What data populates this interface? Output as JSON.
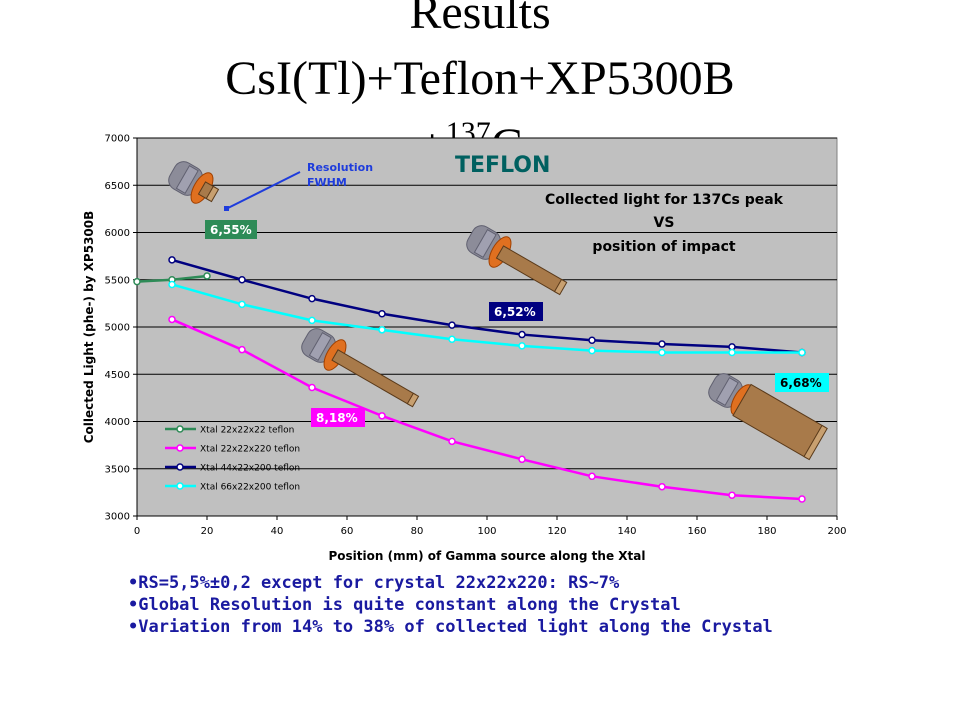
{
  "slide": {
    "title_line1": "Results",
    "title_line2": "CsI(Tl)+Teflon+XP5300B",
    "title_line3_prefix": "+",
    "title_line3_sup": "137",
    "title_line3_suffix": "Cs",
    "bullets": [
      "•RS=5,5%±0,2 except for crystal 22x22x220: RS~7%",
      "•Global Resolution is quite constant along the Crystal",
      "•Variation from 14% to 38% of collected light along the Crystal"
    ]
  },
  "colors": {
    "plot_bg": "#c0c0c0",
    "grid": "#000000",
    "teflon_title": "#006060",
    "series_green": "#2e8b57",
    "series_magenta": "#ff00ff",
    "series_navy": "#000080",
    "series_cyan": "#00ffff",
    "arrow": "#1e3cdc"
  },
  "chart_data": {
    "type": "line",
    "title": "",
    "xlabel": "Position (mm) of Gamma source along the Xtal",
    "ylabel": "Collected Light (phe-) by XP5300B",
    "xlim": [
      0,
      200
    ],
    "ylim": [
      3000,
      7000
    ],
    "xticks": [
      0,
      20,
      40,
      60,
      80,
      100,
      120,
      140,
      160,
      180,
      200
    ],
    "yticks": [
      3000,
      3500,
      4000,
      4500,
      5000,
      5500,
      6000,
      6500,
      7000
    ],
    "grid": "horizontal",
    "legend_position": "bottom-left",
    "series": [
      {
        "name": "Xtal 22x22x22 teflon",
        "color": "#2e8b57",
        "x": [
          0,
          10,
          20
        ],
        "y": [
          5480,
          5500,
          5540
        ]
      },
      {
        "name": "Xtal 22x22x220 teflon",
        "color": "#ff00ff",
        "x": [
          10,
          30,
          50,
          70,
          90,
          110,
          130,
          150,
          170,
          190
        ],
        "y": [
          5080,
          4760,
          4360,
          4060,
          3790,
          3600,
          3420,
          3310,
          3220,
          3180
        ]
      },
      {
        "name": "Xtal 44x22x200 teflon",
        "color": "#000080",
        "x": [
          10,
          30,
          50,
          70,
          90,
          110,
          130,
          150,
          170,
          190
        ],
        "y": [
          5710,
          5500,
          5300,
          5140,
          5020,
          4920,
          4860,
          4820,
          4790,
          4730
        ]
      },
      {
        "name": "Xtal 66x22x200 teflon",
        "color": "#00ffff",
        "x": [
          10,
          30,
          50,
          70,
          90,
          110,
          130,
          150,
          170,
          190
        ],
        "y": [
          5450,
          5240,
          5070,
          4970,
          4870,
          4800,
          4750,
          4730,
          4730,
          4730
        ]
      }
    ],
    "annotations": {
      "teflon": "TEFLON",
      "resolution": "Resolution\nFWHM",
      "collected_line1": "Collected light for 137Cs peak",
      "collected_line2": "VS",
      "collected_line3": "position of impact",
      "label_655": "6,55%",
      "label_652": "6,52%",
      "label_818": "8,18%",
      "label_668": "6,68%"
    }
  }
}
